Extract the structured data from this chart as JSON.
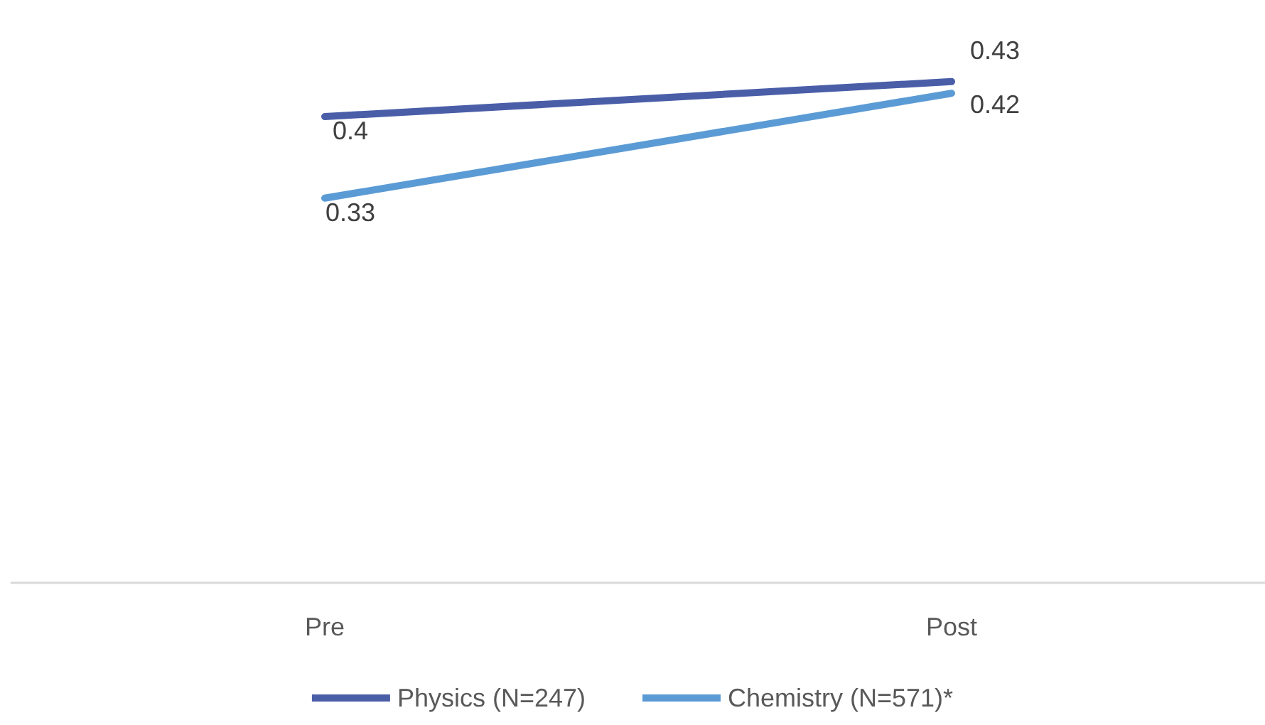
{
  "chart_data": {
    "type": "line",
    "categories": [
      "Pre",
      "Post"
    ],
    "series": [
      {
        "name": "Physics (N=247)",
        "color": "#4a5ea8",
        "values": [
          0.4,
          0.43
        ]
      },
      {
        "name": "Chemistry (N=571)*",
        "color": "#5b9bd5",
        "values": [
          0.33,
          0.42
        ]
      }
    ],
    "data_labels": true,
    "marker": "none",
    "legend": "bottom",
    "grid": false,
    "tick_labels": "x"
  }
}
